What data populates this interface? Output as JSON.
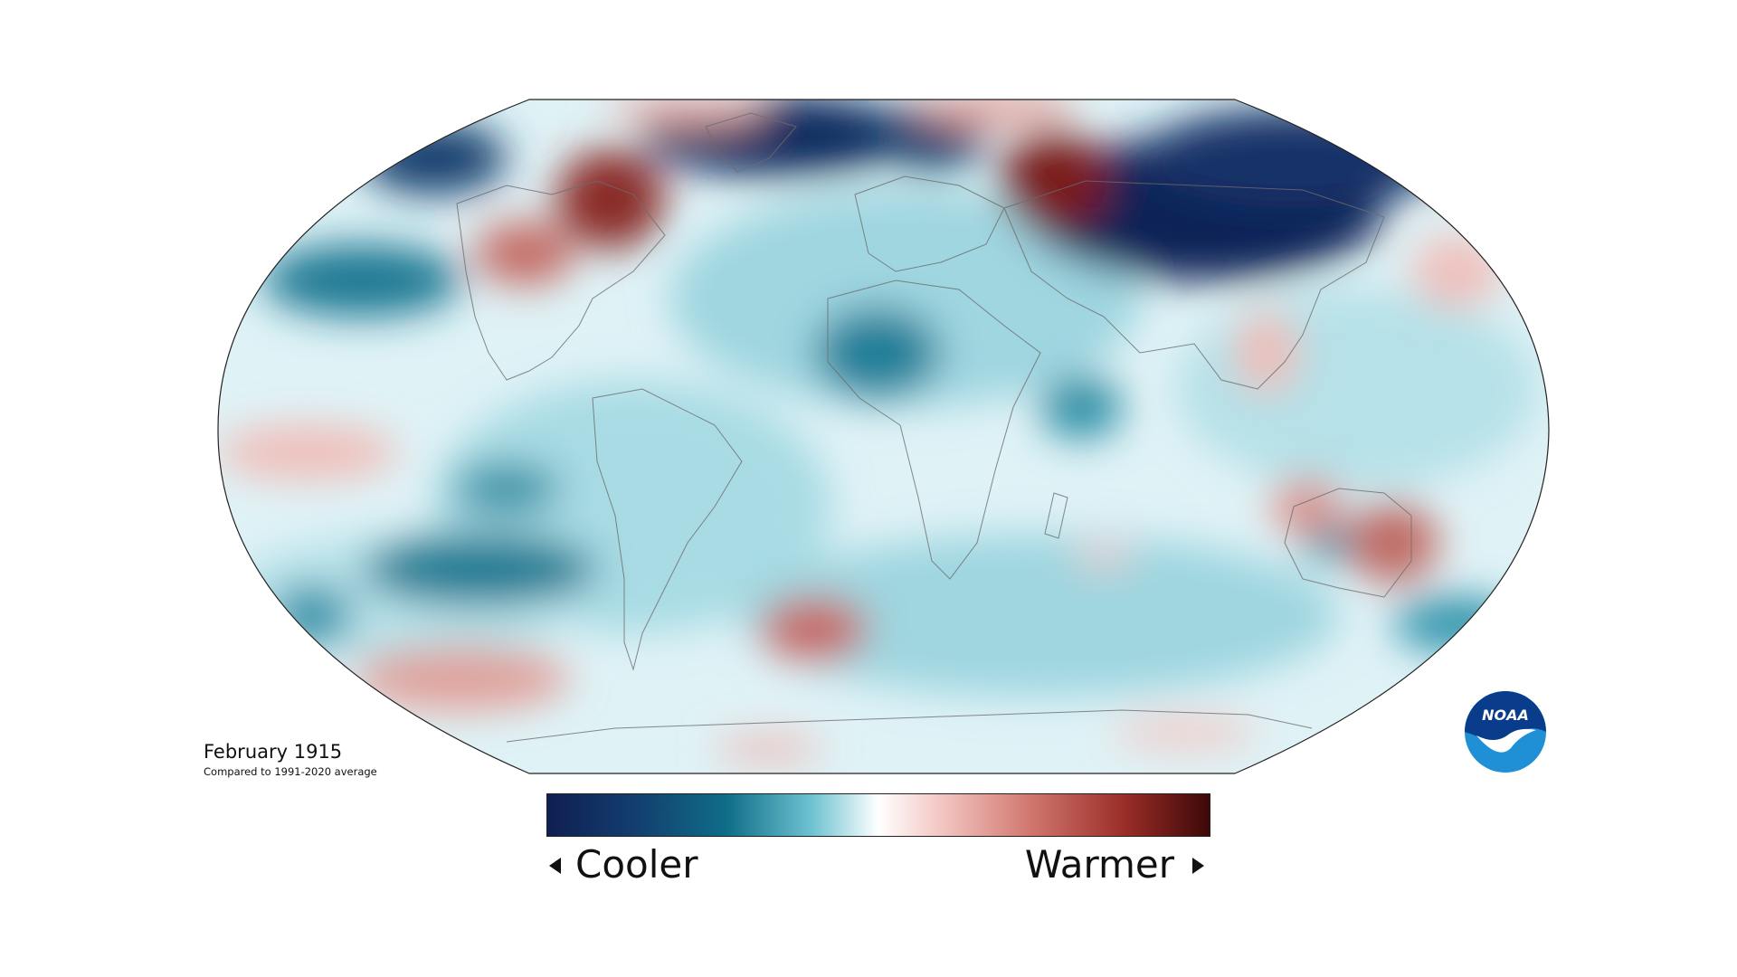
{
  "map": {
    "projection": "robinson",
    "variable": "temperature anomaly"
  },
  "caption": {
    "title": "February 1915",
    "subtitle": "Compared to 1991-2020 average"
  },
  "legend": {
    "cooler_label": "Cooler",
    "warmer_label": "Warmer",
    "colors": [
      "#0f1f52",
      "#123f6e",
      "#0f6d88",
      "#3ea0b2",
      "#a9dde6",
      "#ffffff",
      "#f2c3bf",
      "#d77b72",
      "#a8362e",
      "#3d0808"
    ]
  },
  "logo": {
    "text": "NOAA",
    "icon": "noaa-logo-icon",
    "colors": [
      "#0a3c8c",
      "#1f8fd6"
    ]
  }
}
